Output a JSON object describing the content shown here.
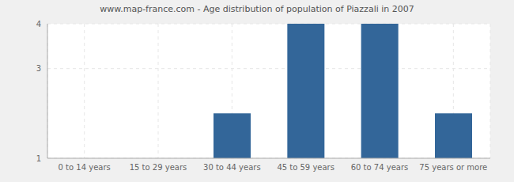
{
  "chart_data": {
    "type": "bar",
    "title": "www.map-france.com - Age distribution of population of Piazzali in 2007",
    "categories": [
      "0 to 14 years",
      "15 to 29 years",
      "30 to 44 years",
      "45 to 59 years",
      "60 to 74 years",
      "75 years or more"
    ],
    "values": [
      1,
      1,
      2,
      4,
      4,
      2
    ],
    "color": "#336699",
    "ylim": [
      1,
      4
    ],
    "yticks": [
      1,
      3,
      4
    ],
    "grid": true
  }
}
